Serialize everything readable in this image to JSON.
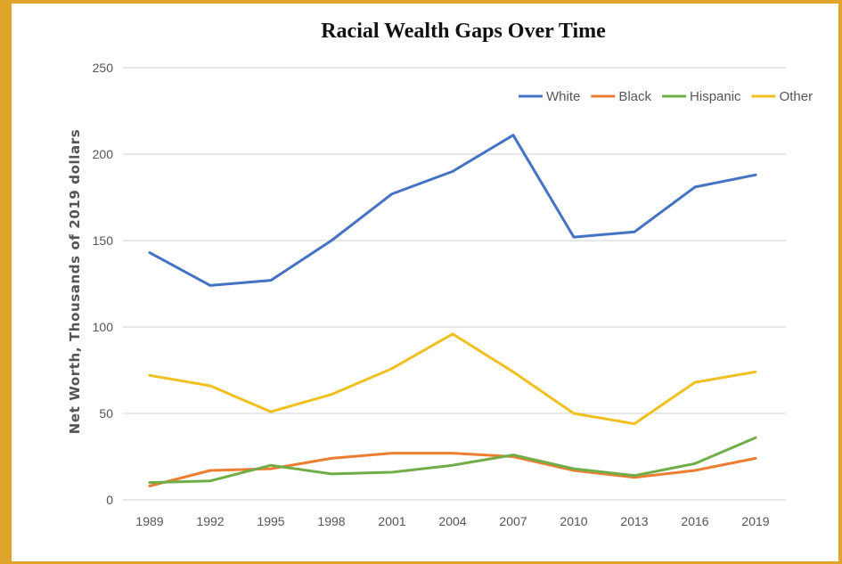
{
  "chart_data": {
    "type": "line",
    "title": "Racial Wealth Gaps Over Time",
    "xlabel": "",
    "ylabel": "Net Worth, Thousands of 2019 dollars",
    "categories": [
      "1989",
      "1992",
      "1995",
      "1998",
      "2001",
      "2004",
      "2007",
      "2010",
      "2013",
      "2016",
      "2019"
    ],
    "ylim": [
      0,
      250
    ],
    "yticks": [
      0,
      50,
      100,
      150,
      200,
      250
    ],
    "grid": true,
    "legend_position": "top-right",
    "series": [
      {
        "name": "White",
        "color": "#4472c4",
        "values": [
          143,
          124,
          127,
          150,
          177,
          190,
          211,
          152,
          155,
          181,
          188
        ]
      },
      {
        "name": "Black",
        "color": "#ed7d31",
        "values": [
          8,
          17,
          18,
          24,
          27,
          27,
          25,
          17,
          13,
          17,
          24
        ]
      },
      {
        "name": "Hispanic",
        "color": "#70ad47",
        "values": [
          10,
          11,
          20,
          15,
          16,
          20,
          26,
          18,
          14,
          21,
          36
        ]
      },
      {
        "name": "Other",
        "color": "#f0c020",
        "values": [
          72,
          66,
          51,
          61,
          76,
          96,
          74,
          50,
          44,
          68,
          74
        ]
      }
    ]
  }
}
